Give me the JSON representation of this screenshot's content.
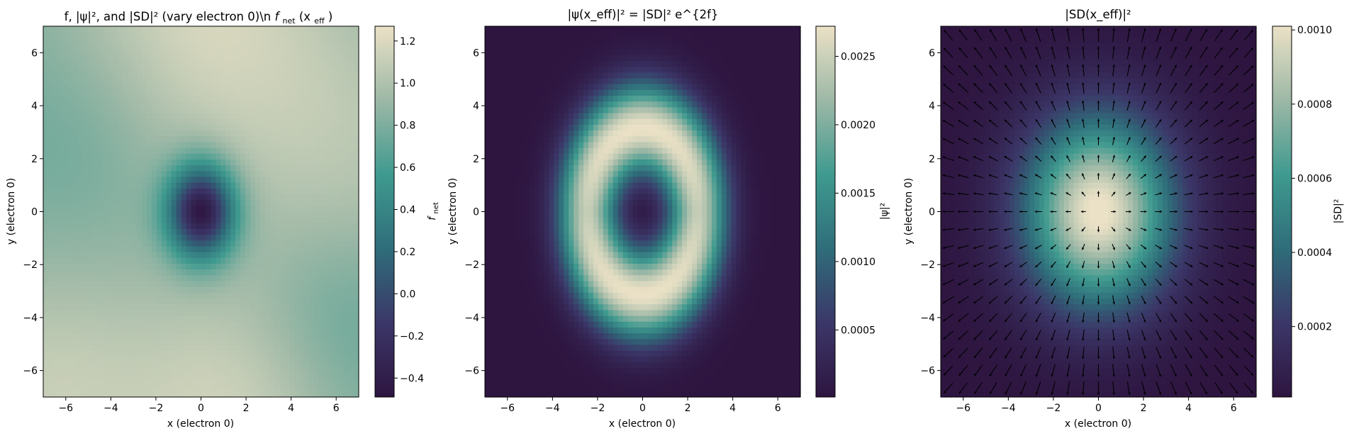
{
  "chart_data": [
    {
      "type": "heatmap",
      "title": "f, |ψ|², and |SD|² (vary electron 0)\\n f_net(x_eff)",
      "title_plain": "f, |ψ|², and |SD|² (vary electron 0)\\n",
      "title_math_base": "f",
      "title_math_sub": "net",
      "title_math_rest": "(x",
      "title_math_sub2": "eff",
      "title_math_close": ")",
      "xlabel": "x (electron 0)",
      "ylabel": "y (electron 0)",
      "xlim": [
        -7,
        7
      ],
      "ylim": [
        -7,
        7
      ],
      "xticks": [
        -6,
        -4,
        -2,
        0,
        2,
        4,
        6
      ],
      "yticks": [
        -6,
        -4,
        -2,
        0,
        2,
        4,
        6
      ],
      "colorbar": {
        "label_base": "f",
        "label_sub": "net",
        "range": [
          -0.49,
          1.27
        ],
        "ticks": [
          "-0.4",
          "-0.2",
          "0.0",
          "0.2",
          "0.4",
          "0.6",
          "0.8",
          "1.0",
          "1.2"
        ],
        "tick_values": [
          -0.4,
          -0.2,
          0.0,
          0.2,
          0.4,
          0.6,
          0.8,
          1.0,
          1.2
        ]
      },
      "colormap": [
        "#2e1540",
        "#3b3768",
        "#2f6d7a",
        "#3f9a8f",
        "#9db8a6",
        "#ebe1c6"
      ]
    },
    {
      "type": "heatmap",
      "title": "|ψ(x_eff)|² = |SD|² e^{2f}",
      "xlabel": "x (electron 0)",
      "ylabel": "y (electron 0)",
      "xlim": [
        -7,
        7
      ],
      "ylim": [
        -7,
        7
      ],
      "xticks": [
        -6,
        -4,
        -2,
        0,
        2,
        4,
        6
      ],
      "yticks": [
        -6,
        -4,
        -2,
        0,
        2,
        4,
        6
      ],
      "colorbar": {
        "label": "|ψ|²",
        "range": [
          1e-05,
          0.00272
        ],
        "ticks": [
          "0.0005",
          "0.0010",
          "0.0015",
          "0.0020",
          "0.0025"
        ],
        "tick_values": [
          0.0005,
          0.001,
          0.0015,
          0.002,
          0.0025
        ]
      },
      "colormap": [
        "#2e1540",
        "#3b3768",
        "#2f6d7a",
        "#3f9a8f",
        "#9db8a6",
        "#ebe1c6"
      ]
    },
    {
      "type": "heatmap",
      "title": "|SD(x_eff)|²",
      "overlay": "quiver (arrows pointing radially outward)",
      "xlabel": "x (electron 0)",
      "ylabel": "y (electron 0)",
      "xlim": [
        -7,
        7
      ],
      "ylim": [
        -7,
        7
      ],
      "xticks": [
        -6,
        -4,
        -2,
        0,
        2,
        4,
        6
      ],
      "yticks": [
        -6,
        -4,
        -2,
        0,
        2,
        4,
        6
      ],
      "colorbar": {
        "label": "|SD|²",
        "range": [
          1e-05,
          0.00101
        ],
        "ticks": [
          "0.0002",
          "0.0004",
          "0.0006",
          "0.0008",
          "0.0010"
        ],
        "tick_values": [
          0.0002,
          0.0004,
          0.0006,
          0.0008,
          0.001
        ]
      },
      "colormap": [
        "#2e1540",
        "#3b3768",
        "#2f6d7a",
        "#3f9a8f",
        "#9db8a6",
        "#ebe1c6"
      ]
    }
  ]
}
